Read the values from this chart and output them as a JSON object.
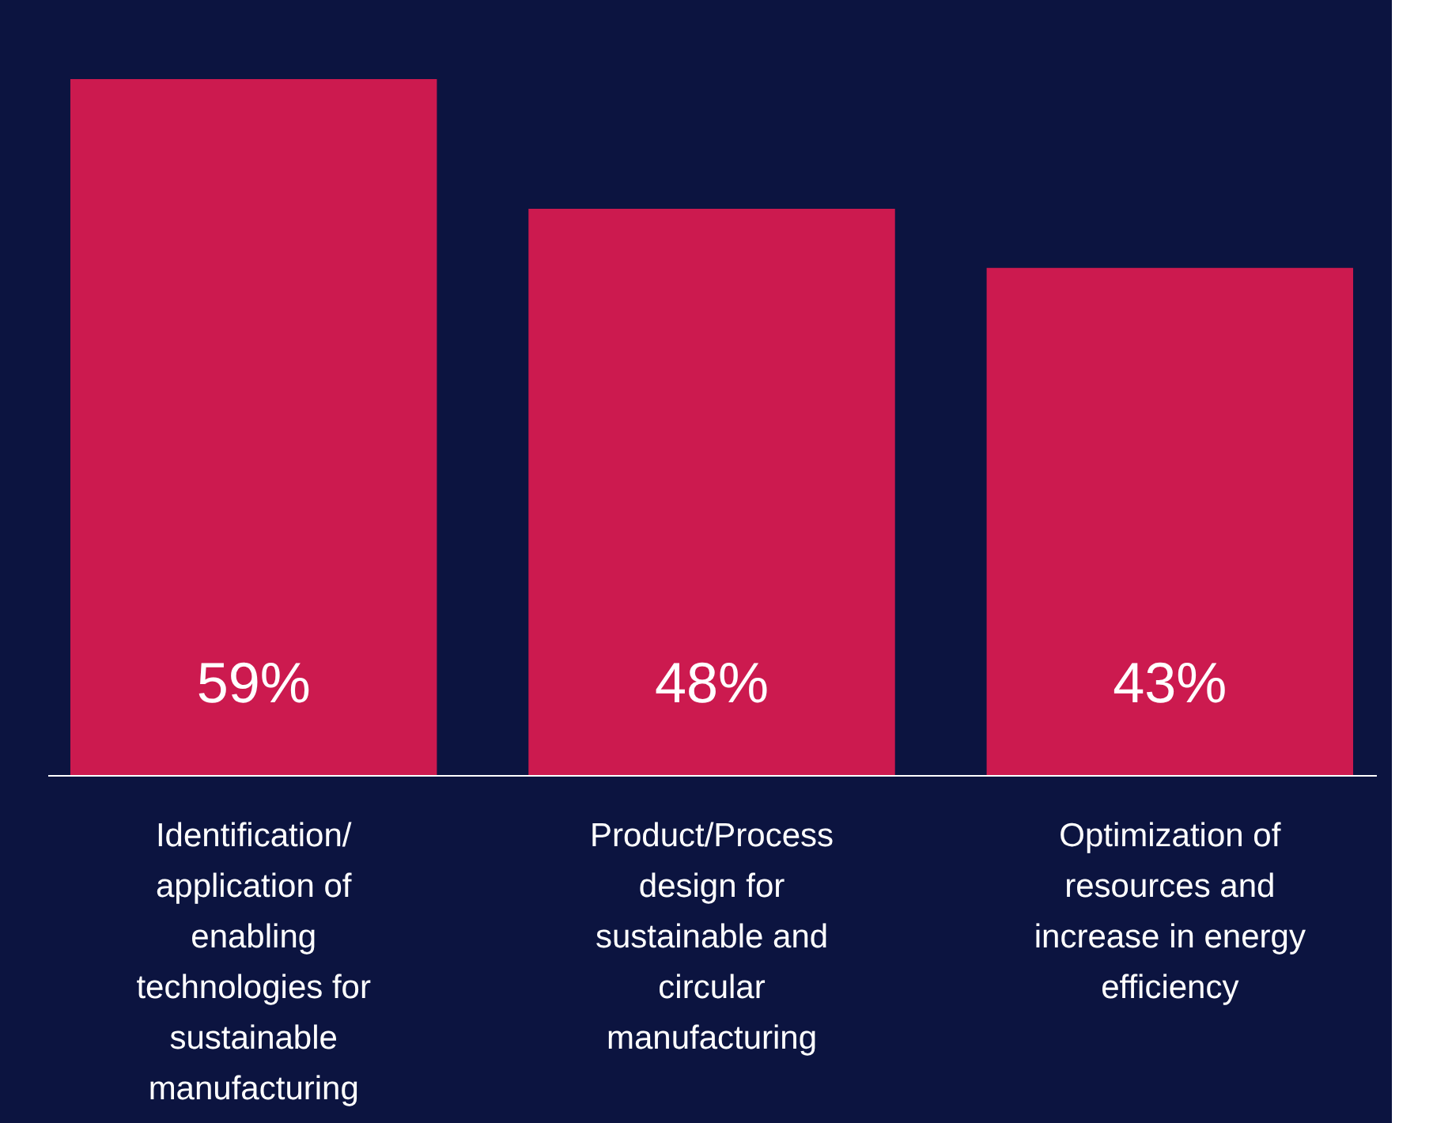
{
  "chart_data": {
    "type": "bar",
    "categories": [
      "Identification/ application of enabling technologies for sustainable manufacturing",
      "Product/Process design for sustainable and circular manufacturing",
      "Optimization of resources and increase in energy efficiency"
    ],
    "values": [
      59,
      48,
      43
    ],
    "value_labels": [
      "59%",
      "48%",
      "43%"
    ],
    "color": "#cc1a4f"
  }
}
